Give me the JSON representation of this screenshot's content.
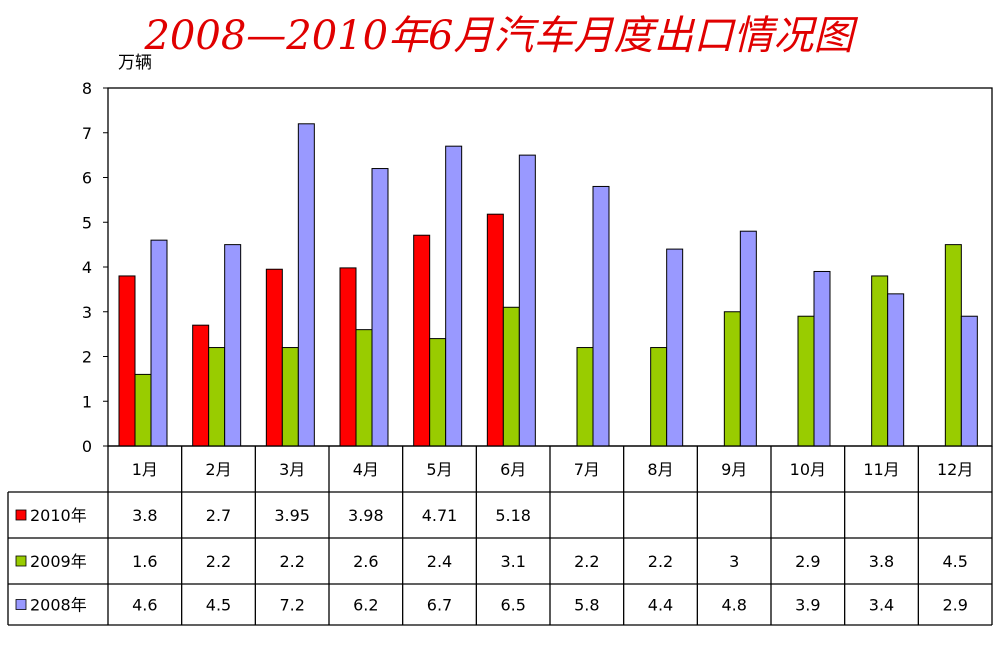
{
  "chart_data": {
    "type": "bar",
    "title": "2008—2010年6月汽车月度出口情况图",
    "ylabel": "万辆",
    "ylim": [
      0,
      8
    ],
    "yticks": [
      0,
      1,
      2,
      3,
      4,
      5,
      6,
      7,
      8
    ],
    "grid": false,
    "legend": "table-left",
    "categories": [
      "1月",
      "2月",
      "3月",
      "4月",
      "5月",
      "6月",
      "7月",
      "8月",
      "9月",
      "10月",
      "11月",
      "12月"
    ],
    "series": [
      {
        "name": "2010年",
        "color": "#ff0000",
        "values": [
          3.8,
          2.7,
          3.95,
          3.98,
          4.71,
          5.18,
          null,
          null,
          null,
          null,
          null,
          null
        ]
      },
      {
        "name": "2009年",
        "color": "#99cc00",
        "values": [
          1.6,
          2.2,
          2.2,
          2.6,
          2.4,
          3.1,
          2.2,
          2.2,
          3,
          2.9,
          3.8,
          4.5
        ]
      },
      {
        "name": "2008年",
        "color": "#9999ff",
        "values": [
          4.6,
          4.5,
          7.2,
          6.2,
          6.7,
          6.5,
          5.8,
          4.4,
          4.8,
          3.9,
          3.4,
          2.9
        ]
      }
    ]
  }
}
